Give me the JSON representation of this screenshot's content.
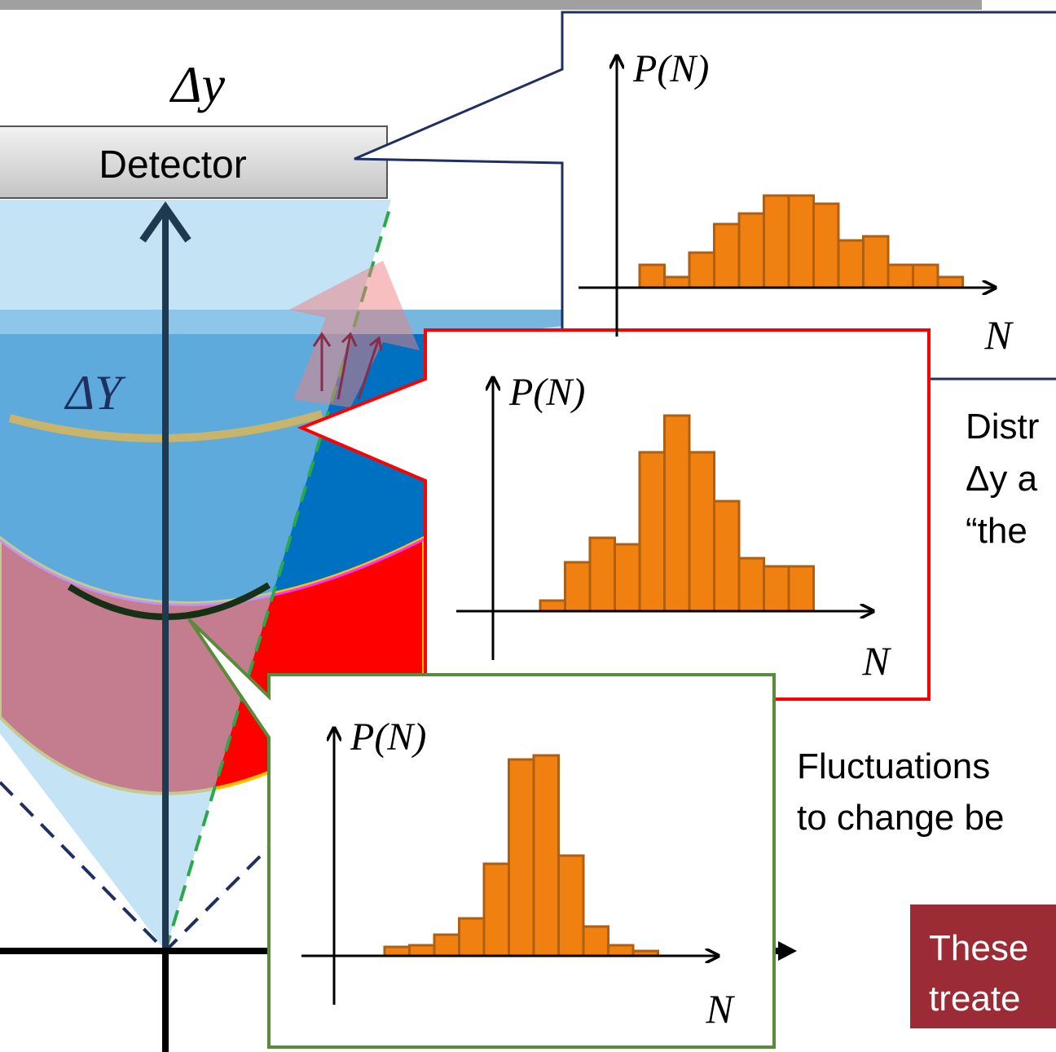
{
  "labels": {
    "delta_y": "Δy",
    "detector": "Detector",
    "delta_Y": "ΔY"
  },
  "histograms": [
    {
      "y_label": "P(N)",
      "x_label": "N",
      "values": [
        28,
        13,
        43,
        78,
        91,
        113,
        113,
        103,
        58,
        63,
        28,
        28,
        13
      ]
    },
    {
      "y_label": "P(N)",
      "x_label": "N",
      "values": [
        13,
        60,
        90,
        82,
        195,
        240,
        195,
        135,
        65,
        55,
        55
      ]
    },
    {
      "y_label": "P(N)",
      "x_label": "N",
      "values": [
        11,
        13,
        26,
        46,
        113,
        241,
        246,
        123,
        36,
        13,
        6
      ]
    }
  ],
  "text": {
    "block1": [
      "Distr",
      "Δy a",
      "“the"
    ],
    "block2": [
      "Fluctuations",
      "to change be"
    ],
    "callout": [
      "These",
      "treate"
    ]
  }
}
